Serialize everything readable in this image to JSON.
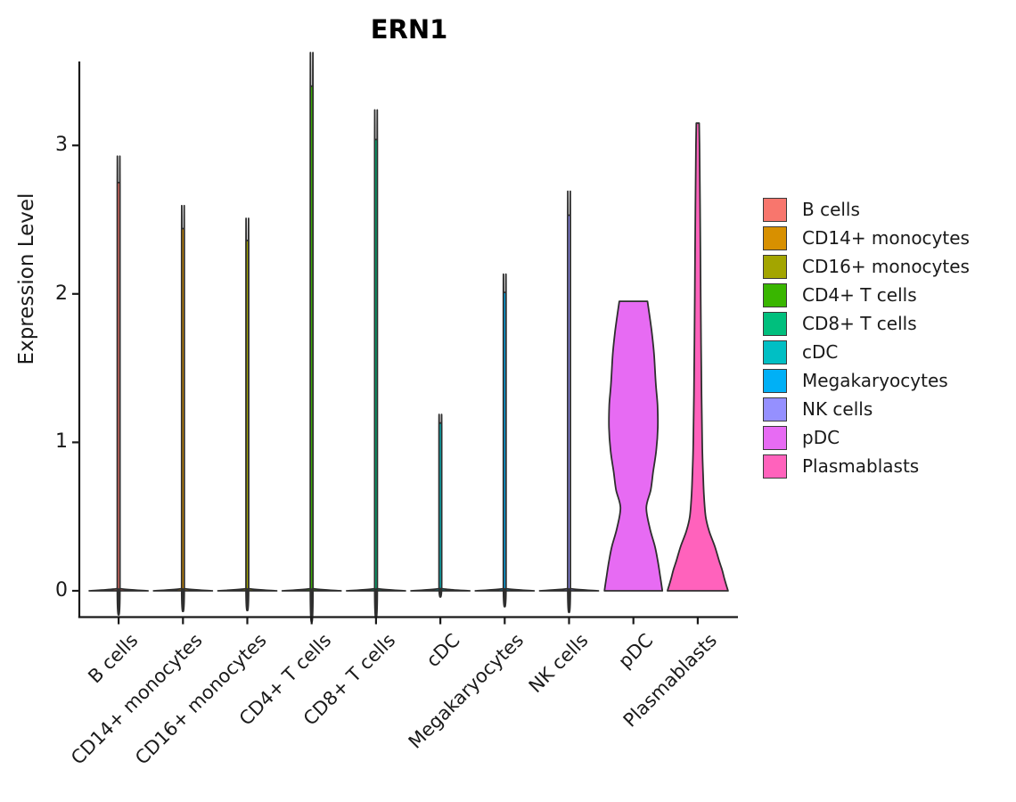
{
  "chart_data": {
    "type": "violin",
    "title": "ERN1",
    "xlabel": "",
    "ylabel": "Expression Level",
    "ylim": [
      0,
      3.57
    ],
    "yticks": [
      0,
      1,
      2,
      3
    ],
    "grid": false,
    "legend_position": "right",
    "categories": [
      "B cells",
      "CD14+ monocytes",
      "CD16+ monocytes",
      "CD4+ T cells",
      "CD8+ T cells",
      "cDC",
      "Megakaryocytes",
      "NK cells",
      "pDC",
      "Plasmablasts"
    ],
    "series": [
      {
        "name": "B cells",
        "color": "#F8766D",
        "peak": 2.75,
        "profile": [
          [
            0,
            1.0
          ],
          [
            0.015,
            0.045
          ],
          [
            0.045,
            0.045
          ],
          [
            2.72,
            0.045
          ],
          [
            2.75,
            0.038
          ]
        ]
      },
      {
        "name": "CD14+ monocytes",
        "color": "#D89000",
        "peak": 2.44,
        "profile": [
          [
            0,
            1.0
          ],
          [
            0.015,
            0.045
          ],
          [
            0.045,
            0.045
          ],
          [
            2.41,
            0.045
          ],
          [
            2.44,
            0.038
          ]
        ]
      },
      {
        "name": "CD16+ monocytes",
        "color": "#A3A500",
        "peak": 2.36,
        "profile": [
          [
            0,
            1.0
          ],
          [
            0.015,
            0.045
          ],
          [
            0.045,
            0.045
          ],
          [
            2.33,
            0.045
          ],
          [
            2.36,
            0.038
          ]
        ]
      },
      {
        "name": "CD4+ T cells",
        "color": "#39B600",
        "peak": 3.4,
        "profile": [
          [
            0,
            1.0
          ],
          [
            0.015,
            0.045
          ],
          [
            0.045,
            0.045
          ],
          [
            3.37,
            0.045
          ],
          [
            3.4,
            0.038
          ]
        ]
      },
      {
        "name": "CD8+ T cells",
        "color": "#00BF7D",
        "peak": 3.04,
        "profile": [
          [
            0,
            1.0
          ],
          [
            0.015,
            0.045
          ],
          [
            0.045,
            0.045
          ],
          [
            3.01,
            0.045
          ],
          [
            3.04,
            0.038
          ]
        ]
      },
      {
        "name": "cDC",
        "color": "#00BFC4",
        "peak": 1.13,
        "profile": [
          [
            0,
            1.0
          ],
          [
            0.015,
            0.045
          ],
          [
            0.045,
            0.045
          ],
          [
            1.1,
            0.045
          ],
          [
            1.13,
            0.038
          ]
        ]
      },
      {
        "name": "Megakaryocytes",
        "color": "#00B0F6",
        "peak": 2.01,
        "profile": [
          [
            0,
            1.0
          ],
          [
            0.015,
            0.045
          ],
          [
            0.045,
            0.045
          ],
          [
            1.98,
            0.045
          ],
          [
            2.01,
            0.038
          ]
        ]
      },
      {
        "name": "NK cells",
        "color": "#9590FF",
        "peak": 2.53,
        "profile": [
          [
            0,
            1.0
          ],
          [
            0.015,
            0.045
          ],
          [
            0.045,
            0.045
          ],
          [
            2.5,
            0.045
          ],
          [
            2.53,
            0.038
          ]
        ]
      },
      {
        "name": "pDC",
        "color": "#E76BF3",
        "peak": 1.95,
        "profile": [
          [
            0,
            0.985
          ],
          [
            0.1,
            0.91
          ],
          [
            0.2,
            0.83
          ],
          [
            0.3,
            0.73
          ],
          [
            0.42,
            0.56
          ],
          [
            0.56,
            0.44
          ],
          [
            0.68,
            0.59
          ],
          [
            0.8,
            0.67
          ],
          [
            0.95,
            0.78
          ],
          [
            1.1,
            0.83
          ],
          [
            1.25,
            0.82
          ],
          [
            1.4,
            0.76
          ],
          [
            1.6,
            0.7
          ],
          [
            1.75,
            0.62
          ],
          [
            1.88,
            0.53
          ],
          [
            1.95,
            0.48
          ]
        ]
      },
      {
        "name": "Plasmablasts",
        "color": "#FF62BC",
        "peak": 3.15,
        "profile": [
          [
            0,
            1.03
          ],
          [
            0.08,
            0.91
          ],
          [
            0.14,
            0.83
          ],
          [
            0.2,
            0.73
          ],
          [
            0.3,
            0.58
          ],
          [
            0.4,
            0.39
          ],
          [
            0.5,
            0.27
          ],
          [
            0.65,
            0.21
          ],
          [
            0.8,
            0.18
          ],
          [
            1.0,
            0.15
          ],
          [
            1.5,
            0.12
          ],
          [
            2.0,
            0.1
          ],
          [
            2.6,
            0.08
          ],
          [
            3.0,
            0.06
          ],
          [
            3.15,
            0.05
          ]
        ]
      }
    ]
  }
}
